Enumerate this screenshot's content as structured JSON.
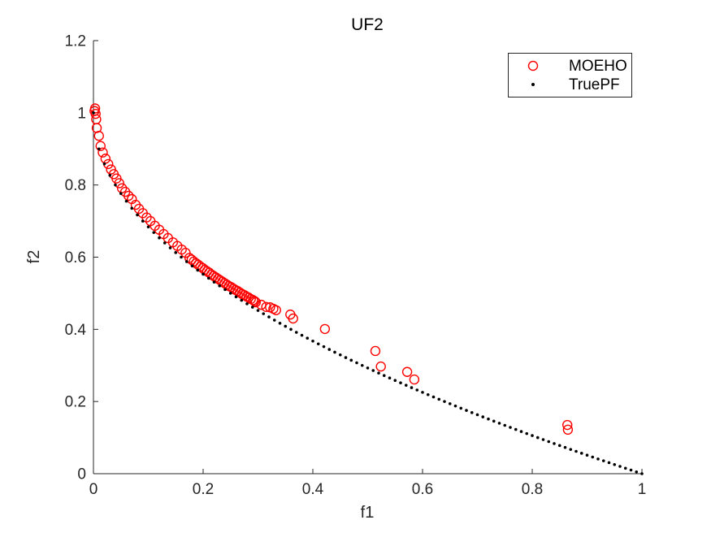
{
  "title": "UF2",
  "axes": {
    "xlabel": "f1",
    "ylabel": "f2",
    "x_ticks": [
      0,
      0.2,
      0.4,
      0.6,
      0.8,
      1
    ],
    "x_tick_labels": [
      "0",
      "0.2",
      "0.4",
      "0.6",
      "0.8",
      "1"
    ],
    "y_ticks": [
      0,
      0.2,
      0.4,
      0.6,
      0.8,
      1,
      1.2
    ],
    "y_tick_labels": [
      "0",
      "0.2",
      "0.4",
      "0.6",
      "0.8",
      "1",
      "1.2"
    ],
    "xlim": [
      0,
      1
    ],
    "ylim": [
      0,
      1.2
    ]
  },
  "legend": {
    "items": [
      {
        "label": "MOEHO",
        "marker": "red-open-circle"
      },
      {
        "label": "TruePF",
        "marker": "black-dot"
      }
    ]
  },
  "colors": {
    "moeho": "#ff0000",
    "truepf": "#000000",
    "axis": "#262626",
    "text": "#262626",
    "background": "#ffffff"
  },
  "chart_data": {
    "type": "scatter",
    "title": "UF2",
    "xlabel": "f1",
    "ylabel": "f2",
    "xlim": [
      0,
      1
    ],
    "ylim": [
      0,
      1.2
    ],
    "grid": false,
    "legend_position": "top-right",
    "series": [
      {
        "name": "MOEHO",
        "marker": "open-circle",
        "color": "#ff0000",
        "points": [
          [
            0.002,
            1.005
          ],
          [
            0.003,
            1.012
          ],
          [
            0.004,
            0.997
          ],
          [
            0.005,
            0.982
          ],
          [
            0.006,
            0.958
          ],
          [
            0.01,
            0.936
          ],
          [
            0.013,
            0.908
          ],
          [
            0.017,
            0.89
          ],
          [
            0.022,
            0.873
          ],
          [
            0.027,
            0.858
          ],
          [
            0.032,
            0.843
          ],
          [
            0.037,
            0.83
          ],
          [
            0.042,
            0.818
          ],
          [
            0.047,
            0.805
          ],
          [
            0.052,
            0.791
          ],
          [
            0.058,
            0.781
          ],
          [
            0.064,
            0.77
          ],
          [
            0.07,
            0.761
          ],
          [
            0.077,
            0.745
          ],
          [
            0.083,
            0.734
          ],
          [
            0.09,
            0.722
          ],
          [
            0.097,
            0.71
          ],
          [
            0.104,
            0.7
          ],
          [
            0.112,
            0.687
          ],
          [
            0.12,
            0.676
          ],
          [
            0.128,
            0.664
          ],
          [
            0.136,
            0.653
          ],
          [
            0.145,
            0.641
          ],
          [
            0.153,
            0.631
          ],
          [
            0.161,
            0.621
          ],
          [
            0.168,
            0.612
          ],
          [
            0.175,
            0.598
          ],
          [
            0.179,
            0.593
          ],
          [
            0.183,
            0.588
          ],
          [
            0.187,
            0.583
          ],
          [
            0.191,
            0.579
          ],
          [
            0.195,
            0.574
          ],
          [
            0.199,
            0.57
          ],
          [
            0.203,
            0.565
          ],
          [
            0.207,
            0.561
          ],
          [
            0.211,
            0.557
          ],
          [
            0.215,
            0.552
          ],
          [
            0.219,
            0.548
          ],
          [
            0.223,
            0.544
          ],
          [
            0.227,
            0.54
          ],
          [
            0.231,
            0.536
          ],
          [
            0.235,
            0.532
          ],
          [
            0.239,
            0.528
          ],
          [
            0.243,
            0.524
          ],
          [
            0.247,
            0.52
          ],
          [
            0.251,
            0.517
          ],
          [
            0.255,
            0.513
          ],
          [
            0.259,
            0.509
          ],
          [
            0.263,
            0.506
          ],
          [
            0.267,
            0.502
          ],
          [
            0.271,
            0.498
          ],
          [
            0.275,
            0.495
          ],
          [
            0.279,
            0.491
          ],
          [
            0.283,
            0.488
          ],
          [
            0.287,
            0.484
          ],
          [
            0.291,
            0.481
          ],
          [
            0.294,
            0.478
          ],
          [
            0.296,
            0.475
          ],
          [
            0.306,
            0.468
          ],
          [
            0.315,
            0.462
          ],
          [
            0.322,
            0.461
          ],
          [
            0.328,
            0.457
          ],
          [
            0.333,
            0.453
          ],
          [
            0.359,
            0.441
          ],
          [
            0.364,
            0.43
          ],
          [
            0.422,
            0.401
          ],
          [
            0.514,
            0.34
          ],
          [
            0.524,
            0.297
          ],
          [
            0.572,
            0.282
          ],
          [
            0.585,
            0.261
          ],
          [
            0.864,
            0.135
          ],
          [
            0.865,
            0.122
          ]
        ]
      },
      {
        "name": "TruePF",
        "marker": "dot",
        "color": "#000000",
        "formula": "f2 = 1 - sqrt(f1)",
        "n_points": 101,
        "f1_range": [
          0,
          1
        ]
      }
    ]
  }
}
